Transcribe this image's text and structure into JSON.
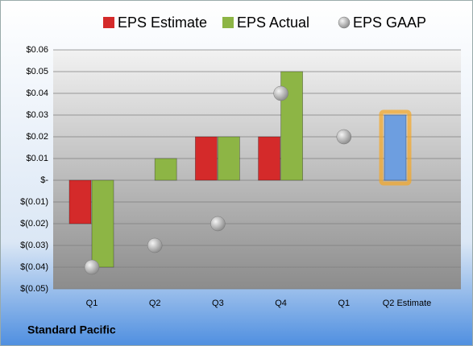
{
  "chart_data": {
    "type": "bar",
    "categories": [
      "Q1",
      "Q2",
      "Q3",
      "Q4",
      "Q1",
      "Q2 Estimate"
    ],
    "series": [
      {
        "name": "EPS Estimate",
        "color": "#d42a2a",
        "values": [
          -0.02,
          null,
          0.02,
          0.02,
          null,
          0.03
        ],
        "highlight_index": 5,
        "highlight_color": "#6d9ee0",
        "highlight_glow": "#f5a623"
      },
      {
        "name": "EPS Actual",
        "color": "#8db545",
        "values": [
          -0.04,
          0.01,
          0.02,
          0.05,
          null,
          null
        ]
      },
      {
        "name": "EPS GAAP",
        "type": "scatter",
        "color": "#a0a0a0",
        "values": [
          -0.04,
          -0.03,
          -0.02,
          0.04,
          0.02,
          null
        ]
      }
    ],
    "ylim": [
      -0.05,
      0.06
    ],
    "yticks": [
      {
        "value": -0.05,
        "label": "$(0.05)"
      },
      {
        "value": -0.04,
        "label": "$(0.04)"
      },
      {
        "value": -0.03,
        "label": "$(0.03)"
      },
      {
        "value": -0.02,
        "label": "$(0.02)"
      },
      {
        "value": -0.01,
        "label": "$(0.01)"
      },
      {
        "value": 0,
        "label": "$-"
      },
      {
        "value": 0.01,
        "label": "$0.01"
      },
      {
        "value": 0.02,
        "label": "$0.02"
      },
      {
        "value": 0.03,
        "label": "$0.03"
      },
      {
        "value": 0.04,
        "label": "$0.04"
      },
      {
        "value": 0.05,
        "label": "$0.05"
      },
      {
        "value": 0.06,
        "label": "$0.06"
      }
    ],
    "grid": true,
    "legend": "top",
    "footer": "Standard Pacific"
  }
}
